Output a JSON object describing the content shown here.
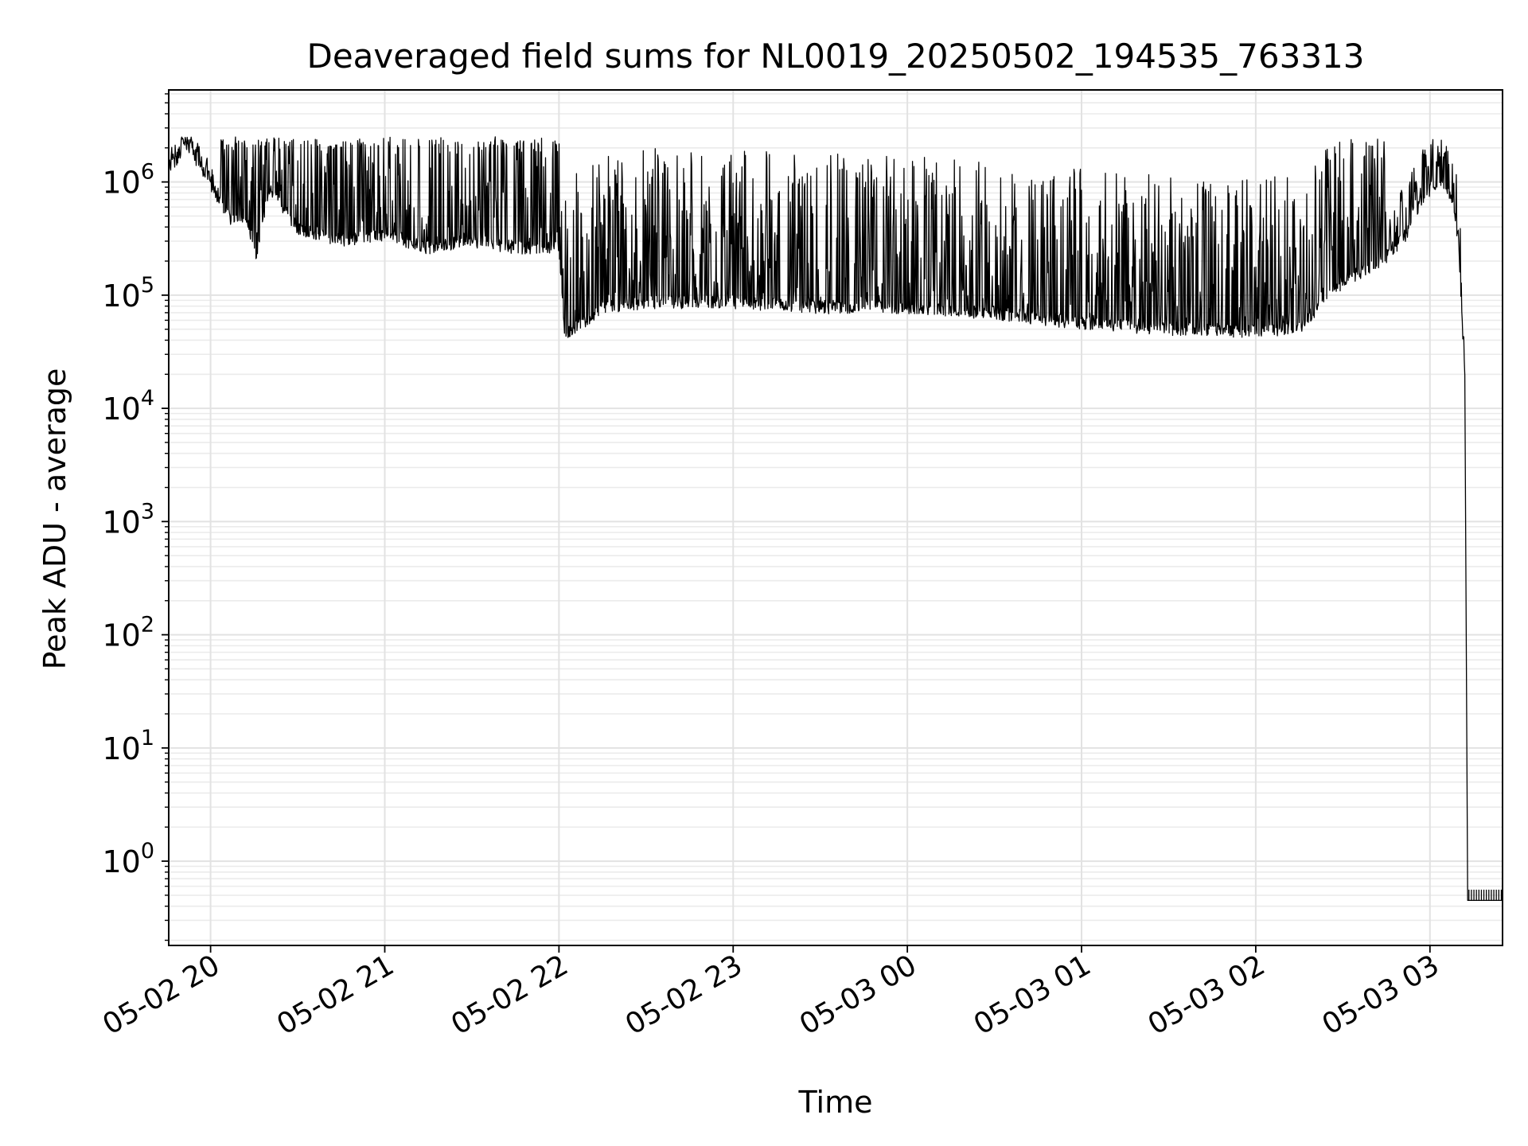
{
  "chart_data": {
    "type": "line",
    "title": "Deaveraged field sums for NL0019_20250502_194535_763313",
    "xlabel": "Time",
    "ylabel": "Peak ADU - average",
    "yscale": "log",
    "ylim": [
      0.18,
      6500000
    ],
    "xlim": [
      "2025-05-02 19:45:35",
      "2025-05-03 03:25:00"
    ],
    "grid": true,
    "xticks": [
      {
        "value": "2025-05-02 20:00",
        "label": "05-02 20"
      },
      {
        "value": "2025-05-02 21:00",
        "label": "05-02 21"
      },
      {
        "value": "2025-05-02 22:00",
        "label": "05-02 22"
      },
      {
        "value": "2025-05-02 23:00",
        "label": "05-02 23"
      },
      {
        "value": "2025-05-03 00:00",
        "label": "05-03 00"
      },
      {
        "value": "2025-05-03 01:00",
        "label": "05-03 01"
      },
      {
        "value": "2025-05-03 02:00",
        "label": "05-03 02"
      },
      {
        "value": "2025-05-03 03:00",
        "label": "05-03 03"
      }
    ],
    "yticks": [
      {
        "value": 1,
        "base": "10",
        "exp": "0"
      },
      {
        "value": 10,
        "base": "10",
        "exp": "1"
      },
      {
        "value": 100,
        "base": "10",
        "exp": "2"
      },
      {
        "value": 1000,
        "base": "10",
        "exp": "3"
      },
      {
        "value": 10000,
        "base": "10",
        "exp": "4"
      },
      {
        "value": 100000,
        "base": "10",
        "exp": "5"
      },
      {
        "value": 1000000,
        "base": "10",
        "exp": "6"
      }
    ],
    "series": [
      {
        "color": "#000000",
        "points": [
          [
            "2025-05-02 19:45:35",
            1500000
          ],
          [
            "2025-05-02 19:48",
            1800000
          ],
          [
            "2025-05-02 19:52",
            2300000
          ],
          [
            "2025-05-02 19:56",
            1700000
          ],
          [
            "2025-05-02 20:00",
            1100000
          ],
          [
            "2025-05-02 20:04",
            700000
          ],
          [
            "2025-05-02 20:08",
            500000
          ],
          [
            "2025-05-02 20:12",
            600000
          ],
          [
            "2025-05-02 20:16",
            250000
          ],
          [
            "2025-05-02 20:20",
            1000000
          ],
          [
            "2025-05-02 20:30",
            450000
          ],
          [
            "2025-05-02 20:45",
            350000
          ],
          [
            "2025-05-02 21:00",
            400000
          ],
          [
            "2025-05-02 21:15",
            300000
          ],
          [
            "2025-05-02 21:30",
            350000
          ],
          [
            "2025-05-02 21:45",
            300000
          ],
          [
            "2025-05-02 22:00",
            300000
          ],
          [
            "2025-05-02 22:02",
            50000
          ],
          [
            "2025-05-02 22:15",
            90000
          ],
          [
            "2025-05-02 22:30",
            100000
          ],
          [
            "2025-05-02 23:00",
            100000
          ],
          [
            "2025-05-02 23:30",
            90000
          ],
          [
            "2025-05-03 00:00",
            90000
          ],
          [
            "2025-05-03 00:30",
            80000
          ],
          [
            "2025-05-03 01:00",
            65000
          ],
          [
            "2025-05-03 01:30",
            58000
          ],
          [
            "2025-05-03 02:00",
            55000
          ],
          [
            "2025-05-03 02:15",
            60000
          ],
          [
            "2025-05-03 02:30",
            150000
          ],
          [
            "2025-05-03 02:45",
            250000
          ],
          [
            "2025-05-03 02:52",
            400000
          ],
          [
            "2025-05-03 02:56",
            700000
          ],
          [
            "2025-05-03 03:00",
            1000000
          ],
          [
            "2025-05-03 03:03",
            1100000
          ],
          [
            "2025-05-03 03:06",
            1000000
          ],
          [
            "2025-05-03 03:08",
            800000
          ],
          [
            "2025-05-03 03:10",
            300000
          ],
          [
            "2025-05-03 03:12",
            20000
          ],
          [
            "2025-05-03 03:13",
            0.45
          ],
          [
            "2025-05-03 03:25",
            0.45
          ]
        ]
      }
    ]
  }
}
